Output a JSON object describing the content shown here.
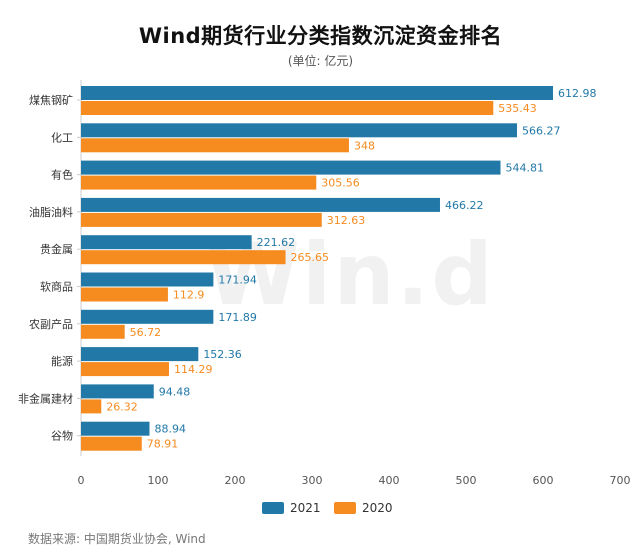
{
  "title": "Wind期货行业分类指数沉淀资金排名",
  "subtitle": "(单位: 亿元)",
  "source": "数据来源: 中国期货业协会, Wind",
  "watermark": "Win.d",
  "colors": {
    "series_2021": "#2279a8",
    "series_2020": "#f68b1f"
  },
  "chart_data": {
    "type": "bar",
    "orientation": "horizontal",
    "categories": [
      "煤焦钢矿",
      "化工",
      "有色",
      "油脂油料",
      "贵金属",
      "软商品",
      "农副产品",
      "能源",
      "非金属建材",
      "谷物"
    ],
    "series": [
      {
        "name": "2021",
        "values": [
          612.98,
          566.27,
          544.81,
          466.22,
          221.62,
          171.94,
          171.89,
          152.36,
          94.48,
          88.94
        ]
      },
      {
        "name": "2020",
        "values": [
          535.43,
          348,
          305.56,
          312.63,
          265.65,
          112.9,
          56.72,
          114.29,
          26.32,
          78.91
        ]
      }
    ],
    "xlim": [
      0,
      700
    ],
    "xticks": [
      0,
      100,
      200,
      300,
      400,
      500,
      600,
      700
    ],
    "legend": "bottom",
    "grid": false
  }
}
